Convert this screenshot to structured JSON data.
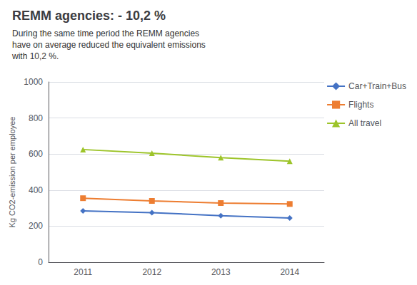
{
  "chart_data": {
    "type": "line",
    "title": "REMM agencies: - 10,2 %",
    "subtitle": "During the same time period the REMM agencies\nhave on average reduced the equivalent emissions\nwith 10,2 %.",
    "categories": [
      "2011",
      "2012",
      "2013",
      "2014"
    ],
    "series": [
      {
        "name": "Car+Train+Bus",
        "color": "#4472c4",
        "marker": "diamond",
        "values": [
          285,
          275,
          258,
          245
        ]
      },
      {
        "name": "Flights",
        "color": "#ed7d31",
        "marker": "square",
        "values": [
          355,
          340,
          328,
          323
        ]
      },
      {
        "name": "All travel",
        "color": "#9dc42a",
        "marker": "triangle",
        "values": [
          625,
          605,
          580,
          560
        ]
      }
    ],
    "ylabel": "Kg CO2-emission per employee",
    "ylim": [
      0,
      1000
    ],
    "yticks": [
      0,
      200,
      400,
      600,
      800,
      1000
    ],
    "grid": true,
    "legend": "right"
  }
}
